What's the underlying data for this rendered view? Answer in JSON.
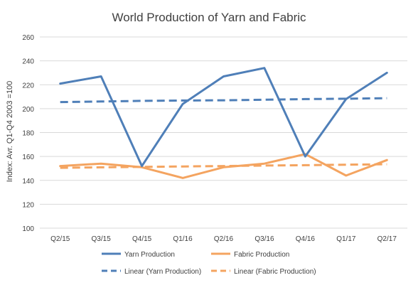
{
  "chart_data": {
    "type": "line",
    "title": "World Production of Yarn and Fabric",
    "xlabel": "",
    "ylabel": "Index: Avr. Q1-Q4 2003 =100",
    "categories": [
      "Q2/15",
      "Q3/15",
      "Q4/15",
      "Q1/16",
      "Q2/16",
      "Q3/16",
      "Q4/16",
      "Q1/17",
      "Q2/17"
    ],
    "ylim": [
      100,
      260
    ],
    "yticks": [
      100,
      120,
      140,
      160,
      180,
      200,
      220,
      240,
      260
    ],
    "grid": "horizontal",
    "legend_position": "bottom",
    "series": [
      {
        "name": "Yarn Production",
        "values": [
          221,
          227,
          152,
          204,
          227,
          234,
          160,
          208,
          230
        ],
        "color": "#4F7FB8",
        "style": "solid"
      },
      {
        "name": "Fabric Production",
        "values": [
          152,
          154,
          151,
          142,
          151,
          154,
          162,
          144,
          157
        ],
        "color": "#F4A460",
        "style": "solid"
      },
      {
        "name": "Linear (Yarn Production)",
        "values": [
          205.5,
          206,
          206.5,
          206.8,
          207,
          207.5,
          208,
          208.3,
          208.8
        ],
        "color": "#4F7FB8",
        "style": "dashed"
      },
      {
        "name": "Linear (Fabric Production)",
        "values": [
          150.5,
          150.9,
          151.3,
          151.6,
          152,
          152.4,
          152.7,
          153.1,
          153.5
        ],
        "color": "#F4A460",
        "style": "dashed"
      }
    ]
  }
}
